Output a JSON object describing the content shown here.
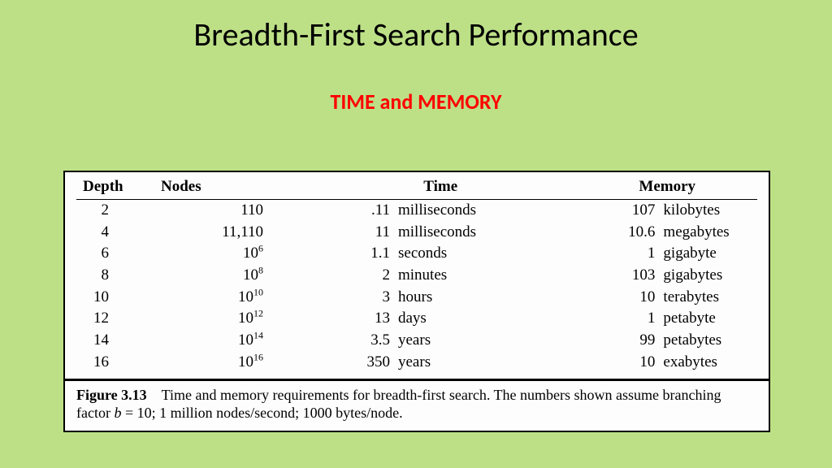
{
  "slide": {
    "title": "Breadth-First Search Performance",
    "subtitle": "TIME and MEMORY",
    "background_color": "#bde087",
    "title_color": "#000000",
    "title_fontsize": 40,
    "subtitle_color": "#ff0000",
    "subtitle_fontsize": 26
  },
  "table": {
    "type": "table",
    "font_family": "Times New Roman",
    "fontsize": 19,
    "background_color": "#fdfdfd",
    "border_color": "#000000",
    "columns": [
      "Depth",
      "Nodes",
      "Time",
      "Memory"
    ],
    "rows": [
      {
        "depth": "2",
        "nodes_text": "110",
        "nodes_exp": null,
        "time_val": ".11",
        "time_unit": "milliseconds",
        "mem_val": "107",
        "mem_unit": "kilobytes"
      },
      {
        "depth": "4",
        "nodes_text": "11,110",
        "nodes_exp": null,
        "time_val": "11",
        "time_unit": "milliseconds",
        "mem_val": "10.6",
        "mem_unit": "megabytes"
      },
      {
        "depth": "6",
        "nodes_text": "10",
        "nodes_exp": "6",
        "time_val": "1.1",
        "time_unit": "seconds",
        "mem_val": "1",
        "mem_unit": "gigabyte"
      },
      {
        "depth": "8",
        "nodes_text": "10",
        "nodes_exp": "8",
        "time_val": "2",
        "time_unit": "minutes",
        "mem_val": "103",
        "mem_unit": "gigabytes"
      },
      {
        "depth": "10",
        "nodes_text": "10",
        "nodes_exp": "10",
        "time_val": "3",
        "time_unit": "hours",
        "mem_val": "10",
        "mem_unit": "terabytes"
      },
      {
        "depth": "12",
        "nodes_text": "10",
        "nodes_exp": "12",
        "time_val": "13",
        "time_unit": "days",
        "mem_val": "1",
        "mem_unit": "petabyte"
      },
      {
        "depth": "14",
        "nodes_text": "10",
        "nodes_exp": "14",
        "time_val": "3.5",
        "time_unit": "years",
        "mem_val": "99",
        "mem_unit": "petabytes"
      },
      {
        "depth": "16",
        "nodes_text": "10",
        "nodes_exp": "16",
        "time_val": "350",
        "time_unit": "years",
        "mem_val": "10",
        "mem_unit": "exabytes"
      }
    ]
  },
  "caption": {
    "label": "Figure 3.13",
    "text_1": "Time and memory requirements for breadth-first search. The numbers shown assume branching factor ",
    "var": "b",
    "eq": " = 10; 1 million nodes/second; 1000 bytes/node."
  }
}
